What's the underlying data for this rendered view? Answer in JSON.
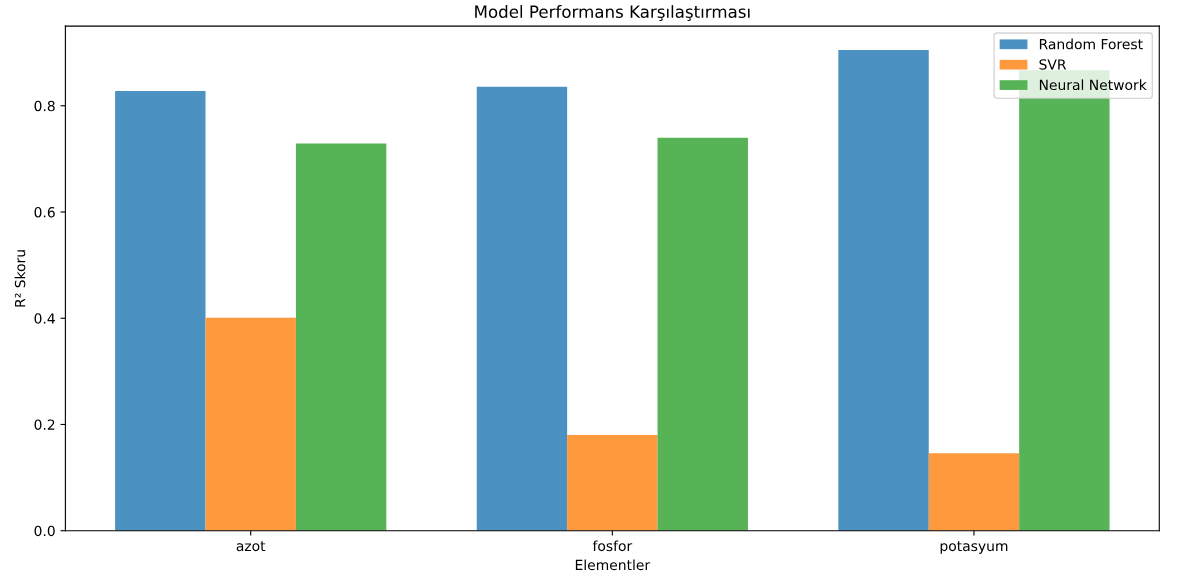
{
  "chart_data": {
    "type": "bar",
    "title": "Model Performans Karşılaştırması",
    "xlabel": "Elementler",
    "ylabel": "R² Skoru",
    "categories": [
      "azot",
      "fosfor",
      "potasyum"
    ],
    "series": [
      {
        "name": "Random Forest",
        "color": "#4b92c3",
        "values": [
          0.828,
          0.836,
          0.905
        ]
      },
      {
        "name": "SVR",
        "color": "#ff993e",
        "values": [
          0.401,
          0.18,
          0.146
        ]
      },
      {
        "name": "Neural Network",
        "color": "#56b356",
        "values": [
          0.729,
          0.74,
          0.867
        ]
      }
    ],
    "ylim": [
      0,
      0.95
    ],
    "yticks": [
      {
        "value": 0,
        "label": "0.0"
      },
      0.2,
      0.4,
      0.6,
      0.8
    ],
    "grid": false,
    "legend": "top right"
  }
}
